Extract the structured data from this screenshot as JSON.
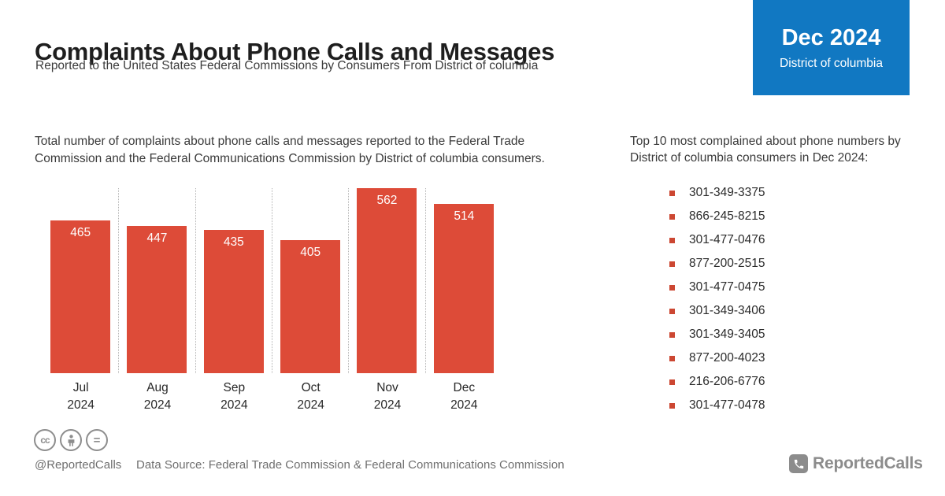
{
  "header": {
    "title": "Complaints About Phone Calls and Messages",
    "subtitle": "Reported to the United States Federal Commissions by Consumers From District of columbia"
  },
  "badge": {
    "period": "Dec 2024",
    "region": "District of columbia",
    "bg_color": "#1178c2"
  },
  "left_description": "Total number of complaints about phone calls and messages reported to the Federal Trade Commission and the Federal Communications Commission by District of columbia consumers.",
  "right_panel": {
    "heading": "Top 10 most complained about phone numbers by District of columbia consumers in Dec 2024:",
    "bullet_color": "#cc4732",
    "phone_numbers": [
      "301-349-3375",
      "866-245-8215",
      "301-477-0476",
      "877-200-2515",
      "301-477-0475",
      "301-349-3406",
      "301-349-3405",
      "877-200-4023",
      "216-206-6776",
      "301-477-0478"
    ]
  },
  "chart_data": {
    "type": "bar",
    "categories": [
      "Jul 2024",
      "Aug 2024",
      "Sep 2024",
      "Oct 2024",
      "Nov 2024",
      "Dec 2024"
    ],
    "values": [
      465,
      447,
      435,
      405,
      562,
      514
    ],
    "title": "",
    "xlabel": "",
    "ylabel": "",
    "ylim": [
      0,
      562
    ],
    "grid": false,
    "legend": "none",
    "bar_color": "#dd4b38",
    "value_label_color": "#ffffff",
    "separator_style": "dotted-vertical-between-bars"
  },
  "footer": {
    "license_icons": [
      "cc-icon",
      "attribution-person-icon",
      "equal-sign-icon"
    ],
    "handle": "@ReportedCalls",
    "data_source": "Data Source: Federal Trade Commission & Federal Communications Commission",
    "logo_text": "ReportedCalls"
  }
}
